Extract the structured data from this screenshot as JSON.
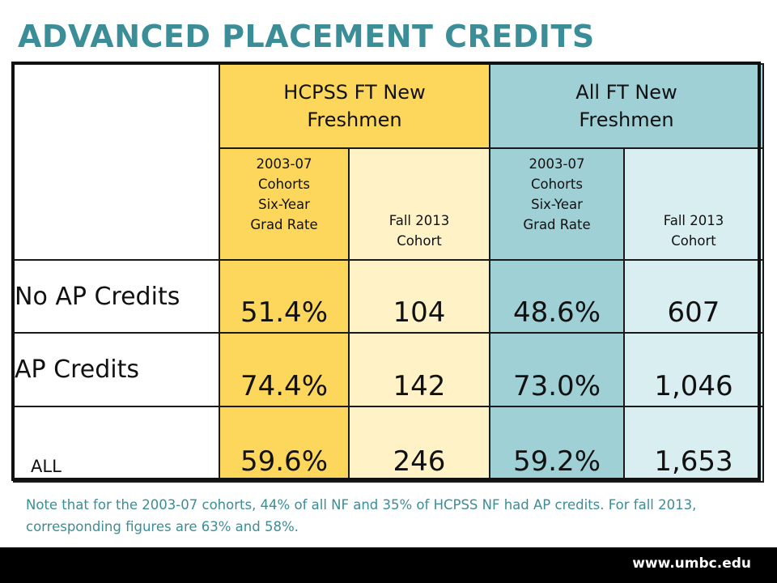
{
  "title": "ADVANCED PLACEMENT CREDITS",
  "table": {
    "group_headers": [
      "HCPSS FT New\nFreshmen",
      "All FT New\nFreshmen"
    ],
    "sub_headers": [
      "2003-07\nCohorts\n Six-Year\nGrad Rate",
      "Fall 2013\nCohort",
      "2003-07\nCohorts\n Six-Year\nGrad Rate",
      "Fall 2013\nCohort"
    ],
    "rows": [
      {
        "label": "No AP Credits",
        "values": [
          "51.4%",
          "104",
          "48.6%",
          "607"
        ]
      },
      {
        "label": "AP Credits",
        "values": [
          "74.4%",
          "142",
          "73.0%",
          "1,046"
        ]
      },
      {
        "label": "ALL",
        "values": [
          "59.6%",
          "246",
          "59.2%",
          "1,653"
        ]
      }
    ]
  },
  "note": "Note that for the 2003-07 cohorts, 44% of all NF and 35% of HCPSS NF had AP credits.  For fall 2013, corresponding figures are 63% and 58%.",
  "footer": {
    "url": "www.umbc.edu"
  },
  "colors": {
    "title": "#3b8d97",
    "hcpss_dark": "#fcd75c",
    "hcpss_light": "#fef2c6",
    "all_dark": "#9fd0d6",
    "all_light": "#d8eef1"
  }
}
